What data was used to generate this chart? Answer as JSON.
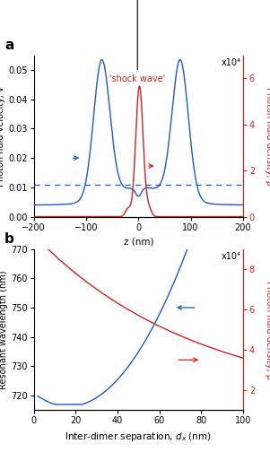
{
  "panel_a": {
    "title": "a",
    "xlabel": "z (nm)",
    "ylabel_left": "Photon fluid velocity, v",
    "ylabel_right": "Photon fluid density, ρ",
    "xlim": [
      -200,
      200
    ],
    "ylim_left": [
      0.0,
      0.055
    ],
    "ylim_right": [
      0,
      7
    ],
    "yticks_left": [
      0.0,
      0.01,
      0.02,
      0.03,
      0.04,
      0.05
    ],
    "yticks_right": [
      0,
      2,
      4,
      6
    ],
    "xticks": [
      -200,
      -100,
      0,
      100,
      200
    ],
    "dashed_y": 0.011,
    "annotation_text": "'shock wave'",
    "annotation_color": "#cc2222",
    "scale_label": "x10⁴",
    "blue_color": "#2255cc",
    "red_color": "#cc2222",
    "dashed_color": "#2255cc"
  },
  "panel_b": {
    "title": "b",
    "xlabel_main": "Inter-dimer separation, ",
    "xlabel_d": "d",
    "xlabel_sub": "x",
    "xlabel_end": " (nm)",
    "ylabel_left": "Resonant wavelength (nm)",
    "ylabel_right": "Photon fluid density, ρ",
    "xlim": [
      0,
      100
    ],
    "ylim_left": [
      715,
      770
    ],
    "ylim_right": [
      1,
      9
    ],
    "yticks_left": [
      720,
      730,
      740,
      750,
      760,
      770
    ],
    "yticks_right": [
      2,
      4,
      6,
      8
    ],
    "xticks": [
      0,
      20,
      40,
      60,
      80,
      100
    ],
    "scale_label": "x10⁴",
    "blue_color": "#2255cc",
    "red_color": "#cc2222"
  }
}
